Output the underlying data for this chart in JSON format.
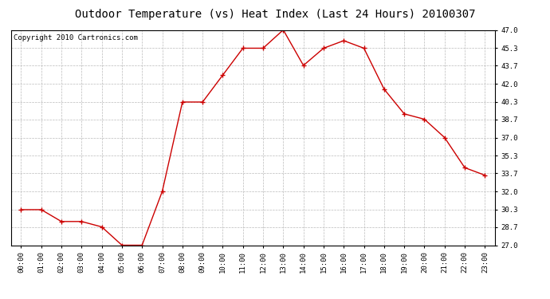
{
  "title": "Outdoor Temperature (vs) Heat Index (Last 24 Hours) 20100307",
  "copyright_text": "Copyright 2010 Cartronics.com",
  "x_labels": [
    "00:00",
    "01:00",
    "02:00",
    "03:00",
    "04:00",
    "05:00",
    "06:00",
    "07:00",
    "08:00",
    "09:00",
    "10:00",
    "11:00",
    "12:00",
    "13:00",
    "14:00",
    "15:00",
    "16:00",
    "17:00",
    "18:00",
    "19:00",
    "20:00",
    "21:00",
    "22:00",
    "23:00"
  ],
  "y_values": [
    30.3,
    30.3,
    29.2,
    29.2,
    28.7,
    27.0,
    27.0,
    32.0,
    40.3,
    40.3,
    42.8,
    45.3,
    45.3,
    47.0,
    43.7,
    45.3,
    46.0,
    45.3,
    41.5,
    39.2,
    38.7,
    37.0,
    34.2,
    33.5
  ],
  "line_color": "#cc0000",
  "marker": "+",
  "marker_size": 4,
  "marker_color": "#cc0000",
  "bg_color": "#ffffff",
  "grid_color": "#bbbbbb",
  "ylim_min": 27.0,
  "ylim_max": 47.0,
  "ytick_values": [
    27.0,
    28.7,
    30.3,
    32.0,
    33.7,
    35.3,
    37.0,
    38.7,
    40.3,
    42.0,
    43.7,
    45.3,
    47.0
  ],
  "title_fontsize": 10,
  "copyright_fontsize": 6.5,
  "tick_fontsize": 6.5
}
